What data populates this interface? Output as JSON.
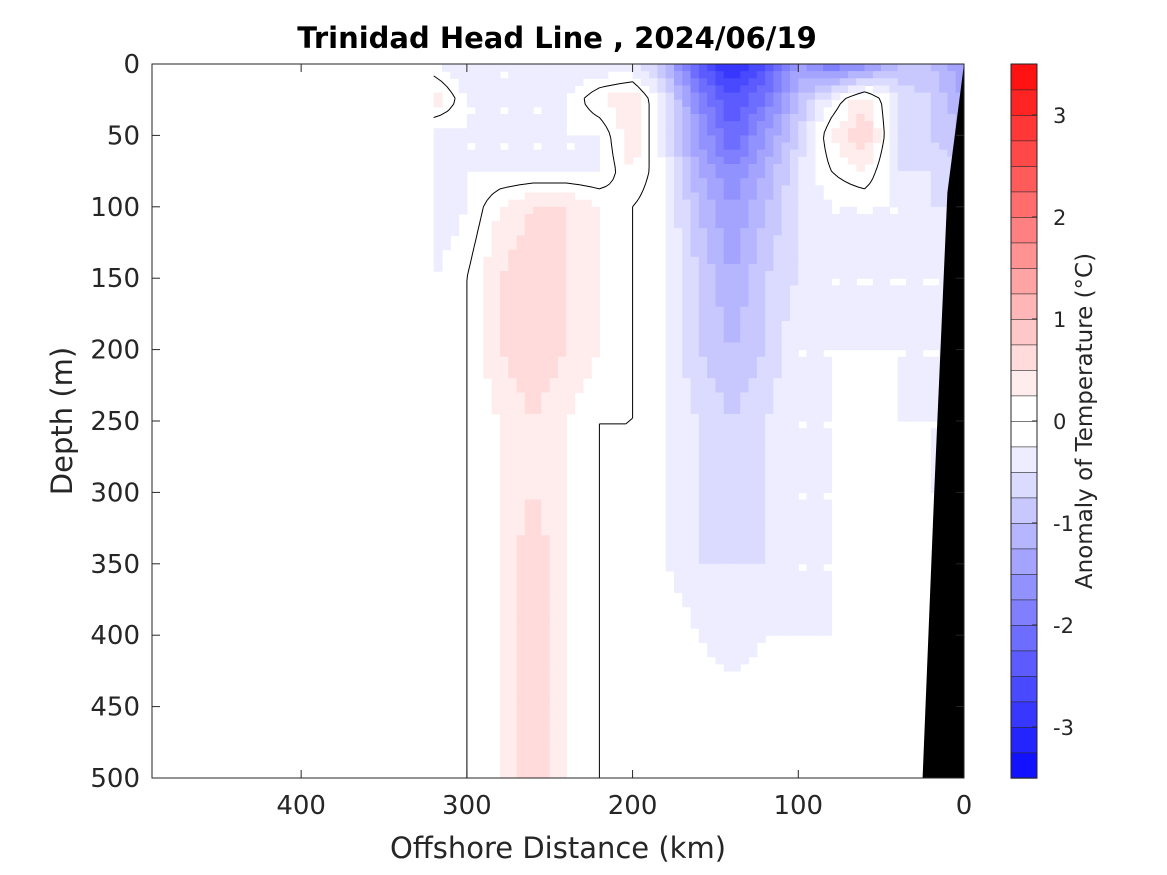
{
  "chart_data": {
    "type": "heatmap",
    "title": "Trinidad Head Line , 2024/06/19",
    "xlabel": "Offshore Distance (km)",
    "ylabel": "Depth (m)",
    "xlim": [
      490,
      0
    ],
    "ylim": [
      0,
      500
    ],
    "x_reversed": true,
    "y_reversed": true,
    "xticks": [
      400,
      300,
      200,
      100,
      0
    ],
    "yticks": [
      0,
      50,
      100,
      150,
      200,
      250,
      300,
      350,
      400,
      450,
      500
    ],
    "grid": false,
    "colorbar": {
      "label": "Anomaly of Temperature (°C)",
      "range": [
        -3.5,
        3.5
      ],
      "step": 0.25,
      "ticks": [
        3,
        2,
        1,
        0,
        -1,
        -2,
        -3
      ],
      "colors": {
        "max_positive": "#ff0000",
        "max_negative": "#0000ff",
        "neutral": "#ffffff"
      }
    },
    "field": {
      "x": [
        320,
        300,
        280,
        260,
        240,
        220,
        200,
        180,
        160,
        140,
        120,
        100,
        80,
        60,
        40,
        20,
        0
      ],
      "y": [
        0,
        25,
        50,
        75,
        100,
        150,
        200,
        250,
        300,
        350,
        400,
        450,
        500
      ],
      "anomaly": [
        [
          -0.25,
          -0.5,
          -0.25,
          -0.25,
          -0.5,
          -0.5,
          -0.5,
          -1.0,
          -2.5,
          -3.0,
          -2.5,
          -1.5,
          -2.0,
          -1.75,
          -1.0,
          -1.0,
          -1.5
        ],
        [
          0.5,
          -0.25,
          -0.25,
          -0.25,
          -0.25,
          0.25,
          0.5,
          -0.5,
          -1.75,
          -2.5,
          -2.0,
          -1.0,
          -0.25,
          0.5,
          -0.5,
          -0.75,
          -1.25
        ],
        [
          -0.5,
          -0.25,
          -0.25,
          -0.25,
          -0.25,
          -0.25,
          0.5,
          -0.5,
          -1.5,
          -2.25,
          -1.5,
          -0.75,
          0.25,
          0.75,
          -0.5,
          -0.75,
          -1.0
        ],
        [
          -0.5,
          -0.25,
          -0.25,
          -0.25,
          -0.25,
          -0.25,
          0.25,
          -0.25,
          -1.25,
          -1.75,
          -1.25,
          -0.5,
          0.0,
          0.25,
          -0.5,
          -0.5,
          -0.75
        ],
        [
          -0.5,
          -0.25,
          0.25,
          0.5,
          0.5,
          0.25,
          0.0,
          -0.25,
          -1.0,
          -1.5,
          -1.0,
          -0.5,
          -0.25,
          -0.25,
          -0.25,
          -0.5,
          -0.5
        ],
        [
          -0.25,
          0.0,
          0.5,
          0.75,
          0.5,
          0.25,
          0.0,
          -0.25,
          -0.75,
          -1.25,
          -0.75,
          -0.5,
          -0.25,
          -0.25,
          -0.25,
          -0.25,
          -0.25
        ],
        [
          -0.25,
          0.0,
          0.5,
          0.75,
          0.5,
          0.25,
          0.0,
          -0.25,
          -0.75,
          -1.0,
          -0.75,
          -0.25,
          -0.25,
          -0.25,
          -0.25,
          -0.25,
          -0.25
        ],
        [
          -0.25,
          0.0,
          0.25,
          0.5,
          0.25,
          0.0,
          0.0,
          -0.25,
          -0.5,
          -0.75,
          -0.5,
          -0.25,
          -0.25,
          0.0,
          -0.25,
          -0.25,
          -0.25
        ],
        [
          0.0,
          0.0,
          0.25,
          0.5,
          0.25,
          0.0,
          0.0,
          -0.25,
          -0.5,
          -0.75,
          -0.5,
          -0.25,
          -0.25,
          0.0,
          0.0,
          -0.25,
          -0.25
        ],
        [
          0.0,
          0.0,
          0.25,
          0.75,
          0.25,
          0.0,
          0.0,
          -0.25,
          -0.5,
          -0.5,
          -0.5,
          -0.25,
          -0.25,
          0.0,
          0.0,
          0.0,
          0.0
        ],
        [
          0.0,
          0.0,
          0.25,
          0.75,
          0.25,
          0.0,
          0.0,
          0.0,
          -0.25,
          -0.5,
          -0.25,
          -0.25,
          -0.25,
          0.0,
          0.0,
          0.0,
          0.0
        ],
        [
          0.0,
          0.0,
          0.25,
          0.75,
          0.25,
          0.0,
          0.0,
          0.0,
          0.0,
          0.0,
          0.0,
          0.0,
          0.0,
          0.0,
          0.0,
          0.0,
          0.0
        ],
        [
          0.0,
          0.0,
          0.25,
          0.75,
          0.25,
          0.0,
          0.0,
          0.0,
          0.0,
          0.0,
          0.0,
          0.0,
          0.0,
          0.0,
          0.0,
          0.0,
          0.0
        ]
      ]
    },
    "bottom_topography": {
      "color": "#000000",
      "x": [
        0,
        10,
        18,
        25
      ],
      "depth": [
        0,
        90,
        300,
        500
      ]
    }
  }
}
